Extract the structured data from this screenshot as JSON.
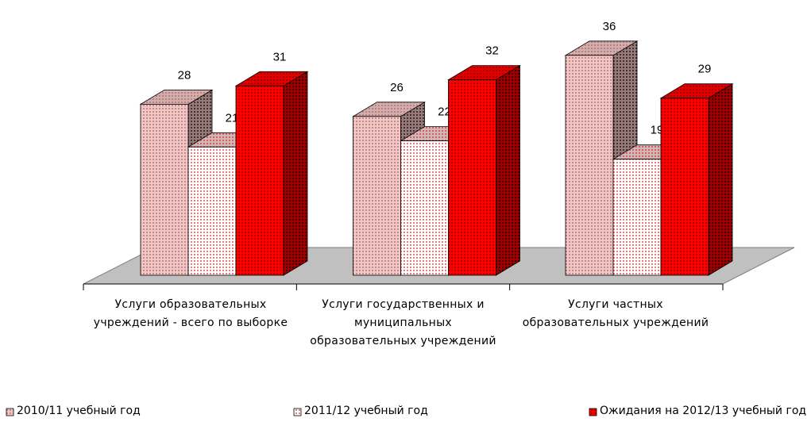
{
  "chart_data": {
    "type": "bar3d",
    "categories": [
      "Услуги образовательных учреждений - всего по выборке",
      "Услуги государственных и муниципальных образовательных учреждений",
      "Услуги частных образовательных учреждений"
    ],
    "series": [
      {
        "name": "2010/11 учебный год",
        "color": "#f7c4c4",
        "values": [
          28,
          26,
          36
        ]
      },
      {
        "name": "2011/12 учебный год",
        "color": "#ffffff",
        "values": [
          21,
          22,
          19
        ]
      },
      {
        "name": "Ожидания на 2012/13 учебный год",
        "color": "#ff0000",
        "values": [
          31,
          32,
          29
        ]
      }
    ],
    "legend": "bottom"
  }
}
